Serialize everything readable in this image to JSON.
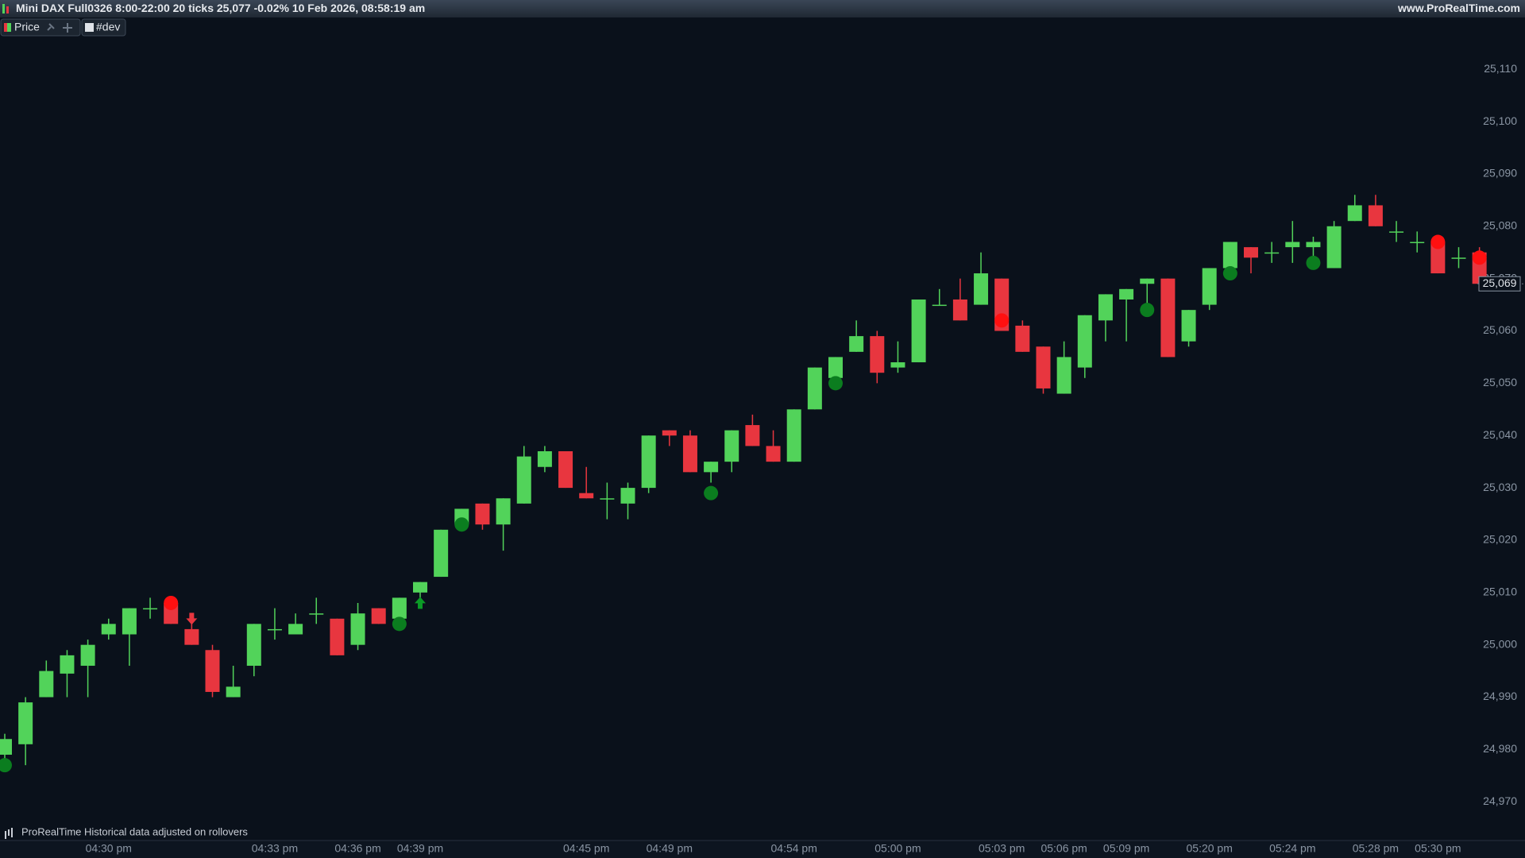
{
  "header": {
    "title": "Mini DAX Full0326 8:00-22:00 20 ticks 25,077 -0.02% 10 Feb 2026, 08:58:19 am",
    "site": "www.ProRealTime.com"
  },
  "toolbar": {
    "buttons": [
      "Price",
      "#dev"
    ]
  },
  "footer": {
    "note": "ProRealTime Historical data adjusted on rollovers"
  },
  "chart_data": {
    "type": "candlestick",
    "up_color": "#52d35a",
    "down_color": "#e8363f",
    "categories": [
      null,
      null,
      null,
      null,
      null,
      "04:30 pm",
      null,
      null,
      null,
      null,
      null,
      null,
      null,
      "04:33 pm",
      null,
      null,
      null,
      "04:36 pm",
      null,
      null,
      "04:39 pm",
      null,
      null,
      null,
      null,
      null,
      null,
      null,
      "04:45 pm",
      null,
      null,
      null,
      "04:49 pm",
      null,
      null,
      null,
      null,
      null,
      "04:54 pm",
      null,
      null,
      null,
      null,
      "05:00 pm",
      null,
      null,
      null,
      null,
      "05:03 pm",
      null,
      null,
      "05:06 pm",
      null,
      null,
      "05:09 pm",
      null,
      null,
      null,
      "05:20 pm",
      null,
      null,
      null,
      "05:24 pm",
      null,
      null,
      null,
      "05:28 pm",
      null,
      null,
      "05:30 pm",
      null,
      null
    ],
    "open": [
      24979,
      24981,
      24990,
      24994.5,
      24996,
      25002,
      25002,
      25007,
      25008,
      25003,
      24999,
      24990,
      24996,
      25003,
      25002,
      25006,
      25005,
      25000,
      25007,
      25005,
      25010,
      25013,
      25023,
      25027,
      25023,
      25027,
      25034,
      25037,
      25029,
      25028,
      25027,
      25030,
      25041,
      25040,
      25033,
      25035,
      25042,
      25038,
      25035,
      25045,
      25051,
      25056,
      25059,
      25053,
      25054,
      25065,
      25066,
      25065,
      25070,
      25061,
      25057,
      25048,
      25053,
      25062,
      25066,
      25069,
      25070,
      25058,
      25065,
      25072,
      25076,
      25075,
      25076,
      25076,
      25072,
      25081,
      25084,
      25079,
      25077,
      25077,
      25074,
      25075
    ],
    "high": [
      24983,
      24990,
      24997,
      24999,
      25001,
      25005,
      25007,
      25009,
      25009,
      25005,
      25000,
      24996,
      25004,
      25007,
      25006,
      25009,
      25005,
      25008,
      25007,
      25009,
      25012,
      25022,
      25026,
      25027,
      25028,
      25038,
      25038,
      25037,
      25034,
      25031,
      25031,
      25040,
      25041,
      25041,
      25035,
      25041,
      25044,
      25041,
      25045,
      25053,
      25055,
      25062,
      25060,
      25058,
      25066,
      25068,
      25070,
      25075,
      25070,
      25062,
      25057,
      25058,
      25063,
      25067,
      25068,
      25070,
      25070,
      25064,
      25072,
      25077,
      25076,
      25077,
      25081,
      25078,
      25081,
      25086,
      25086,
      25081,
      25079,
      25077,
      25076,
      25076
    ],
    "low": [
      24977,
      24977,
      24990,
      24990,
      24990,
      25001,
      24996,
      25005,
      25004,
      25000,
      24990,
      24990,
      24994,
      25001,
      25002,
      25004,
      24998,
      24999,
      25004,
      25004,
      25008,
      25013,
      25023,
      25022,
      25018,
      25027,
      25033,
      25030,
      25028,
      25024,
      25024,
      25029,
      25038,
      25033,
      25031,
      25033,
      25038,
      25035,
      25035,
      25045,
      25050,
      25056,
      25050,
      25052,
      25054,
      25065,
      25062,
      25065,
      25060,
      25056,
      25048,
      25048,
      25051,
      25058,
      25058,
      25063,
      25055,
      25057,
      25064,
      25071,
      25071,
      25073,
      25073,
      25074,
      25072,
      25081,
      25080,
      25077,
      25075,
      25071,
      25072,
      25068
    ],
    "close": [
      24982,
      24989,
      24995,
      24998,
      25000,
      25004,
      25007,
      25007,
      25004,
      25000,
      24991,
      24992,
      25004,
      25003,
      25004,
      25006,
      24998,
      25006,
      25004,
      25009,
      25012,
      25022,
      25026,
      25023,
      25028,
      25036,
      25037,
      25030,
      25028,
      25028,
      25030,
      25040,
      25040,
      25033,
      25035,
      25041,
      25038,
      25035,
      25045,
      25053,
      25055,
      25059,
      25052,
      25054,
      25066,
      25065,
      25062,
      25071,
      25060,
      25056,
      25049,
      25055,
      25063,
      25067,
      25068,
      25070,
      25055,
      25064,
      25072,
      25077,
      25074,
      25075,
      25077,
      25077,
      25080,
      25084,
      25080,
      25079,
      25077,
      25071,
      25074,
      25069
    ],
    "markers": [
      {
        "candle": 0,
        "value": 24977,
        "kind": "buy-dot"
      },
      {
        "candle": 8,
        "value": 25008,
        "kind": "sell-dot"
      },
      {
        "candle": 9,
        "value": 25004,
        "kind": "sell-arrow"
      },
      {
        "candle": 19,
        "value": 25004,
        "kind": "buy-dot"
      },
      {
        "candle": 20,
        "value": 25009,
        "kind": "buy-arrow"
      },
      {
        "candle": 22,
        "value": 25023,
        "kind": "buy-dot"
      },
      {
        "candle": 34,
        "value": 25029,
        "kind": "buy-dot"
      },
      {
        "candle": 40,
        "value": 25050,
        "kind": "buy-dot"
      },
      {
        "candle": 48,
        "value": 25062,
        "kind": "sell-dot"
      },
      {
        "candle": 55,
        "value": 25064,
        "kind": "buy-dot"
      },
      {
        "candle": 59,
        "value": 25071,
        "kind": "buy-dot"
      },
      {
        "candle": 63,
        "value": 25073,
        "kind": "buy-dot"
      },
      {
        "candle": 69,
        "value": 25077,
        "kind": "sell-dot"
      },
      {
        "candle": 71,
        "value": 25074,
        "kind": "sell-dot"
      }
    ],
    "last_price": {
      "value": 25069,
      "label": "25,069"
    },
    "ylim": [
      24962.6,
      25119.9
    ],
    "yticks": [
      {
        "value": 24970,
        "label": "24,970"
      },
      {
        "value": 24980,
        "label": "24,980"
      },
      {
        "value": 24990,
        "label": "24,990"
      },
      {
        "value": 25000,
        "label": "25,000"
      },
      {
        "value": 25010,
        "label": "25,010"
      },
      {
        "value": 25020,
        "label": "25,020"
      },
      {
        "value": 25030,
        "label": "25,030"
      },
      {
        "value": 25040,
        "label": "25,040"
      },
      {
        "value": 25050,
        "label": "25,050"
      },
      {
        "value": 25060,
        "label": "25,060"
      },
      {
        "value": 25070,
        "label": "25,070"
      },
      {
        "value": 25080,
        "label": "25,080"
      },
      {
        "value": 25090,
        "label": "25,090"
      },
      {
        "value": 25100,
        "label": "25,100"
      },
      {
        "value": 25110,
        "label": "25,110"
      }
    ]
  }
}
